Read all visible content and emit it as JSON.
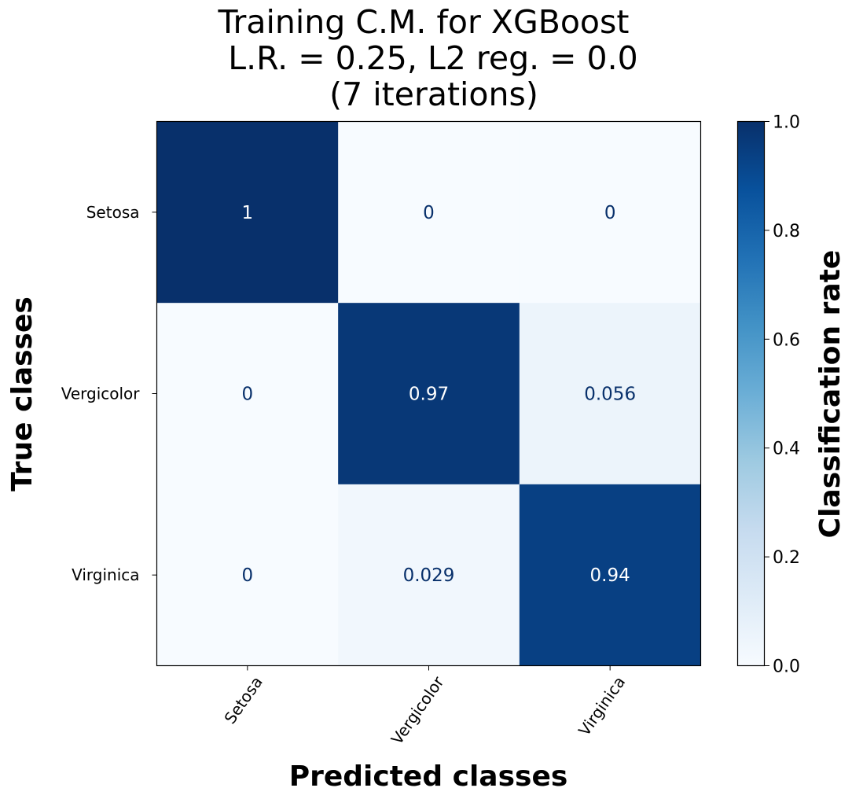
{
  "chart_data": {
    "type": "heatmap",
    "title_lines": [
      "Training C.M. for XGBoost",
      "L.R. = 0.25, L2 reg. = 0.0",
      "(7 iterations)"
    ],
    "xlabel": "Predicted classes",
    "ylabel": "True classes",
    "x_categories": [
      "Setosa",
      "Vergicolor",
      "Virginica"
    ],
    "y_categories": [
      "Setosa",
      "Vergicolor",
      "Virginica"
    ],
    "values": [
      [
        1.0,
        0.0,
        0.0
      ],
      [
        0.0,
        0.97,
        0.056
      ],
      [
        0.0,
        0.029,
        0.94
      ]
    ],
    "cell_labels": [
      [
        "1",
        "0",
        "0"
      ],
      [
        "0",
        "0.97",
        "0.056"
      ],
      [
        "0",
        "0.029",
        "0.94"
      ]
    ],
    "colorbar": {
      "label": "Classification rate",
      "range": [
        0.0,
        1.0
      ],
      "ticks": [
        "0.0",
        "0.2",
        "0.4",
        "0.6",
        "0.8",
        "1.0"
      ],
      "colormap": "Blues"
    },
    "colors": {
      "low": "#f7fbff",
      "high": "#08306b",
      "text_light": "#ffffff",
      "text_dark": "#08306b"
    }
  }
}
